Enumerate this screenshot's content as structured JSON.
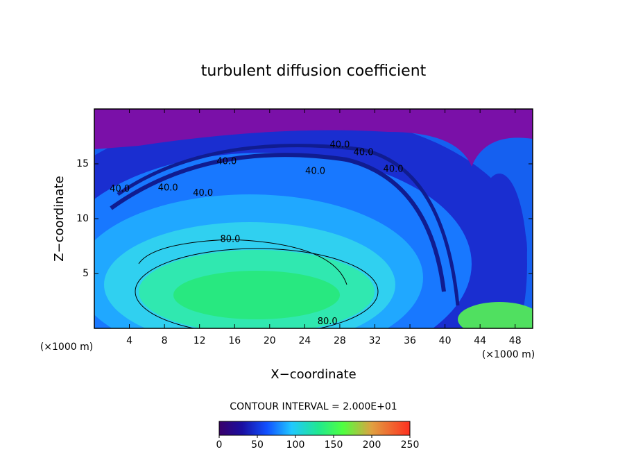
{
  "chart_data": {
    "type": "contour",
    "title": "turbulent diffusion coefficient",
    "xlabel": "X−coordinate",
    "ylabel": "Z−coordinate",
    "x_unit": "(×1000 m)",
    "x_unit_right": "(×1000 m)",
    "xlim": [
      0,
      50
    ],
    "ylim": [
      0,
      20
    ],
    "xticks": [
      4,
      8,
      12,
      16,
      20,
      24,
      28,
      32,
      36,
      40,
      44,
      48
    ],
    "yticks": [
      5,
      10,
      15
    ],
    "contour_interval": "CONTOUR INTERVAL = 2.000E+01",
    "clim": [
      0,
      250
    ],
    "cticks": [
      0,
      50,
      100,
      150,
      200,
      250
    ],
    "contour_labels": [
      {
        "value": 40,
        "label": "40.0",
        "x": 28.0,
        "y": 16.7
      },
      {
        "value": 40,
        "label": "40.0",
        "x": 30.7,
        "y": 16.0
      },
      {
        "value": 40,
        "label": "40.0",
        "x": 15.1,
        "y": 15.2
      },
      {
        "value": 40,
        "label": "40.0",
        "x": 25.2,
        "y": 14.3
      },
      {
        "value": 40,
        "label": "40.0",
        "x": 34.1,
        "y": 14.5
      },
      {
        "value": 40,
        "label": "40.0",
        "x": 2.9,
        "y": 12.7
      },
      {
        "value": 40,
        "label": "40.0",
        "x": 8.4,
        "y": 12.8
      },
      {
        "value": 40,
        "label": "40.0",
        "x": 12.4,
        "y": 12.3
      },
      {
        "value": 80,
        "label": "80.0",
        "x": 15.5,
        "y": 8.1
      },
      {
        "value": 80,
        "label": "80.0",
        "x": 26.6,
        "y": 0.6
      }
    ]
  }
}
